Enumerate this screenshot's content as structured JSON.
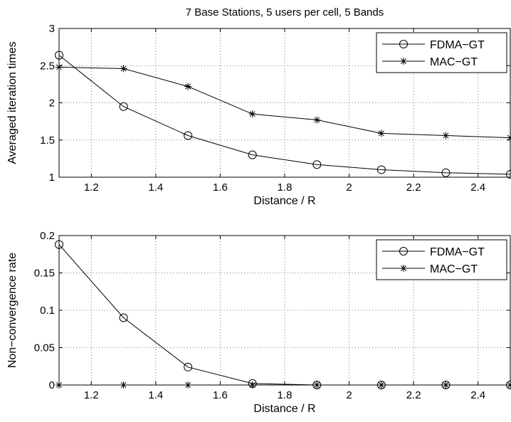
{
  "chart_data": [
    {
      "type": "line",
      "title": "7 Base Stations, 5 users per cell, 5 Bands",
      "xlabel": "Distance / R",
      "ylabel": "Averaged iteration times",
      "xlim": [
        1.1,
        2.5
      ],
      "ylim": [
        1,
        3
      ],
      "xticks": [
        "1.2",
        "1.4",
        "1.6",
        "1.8",
        "2",
        "2.2",
        "2.4"
      ],
      "yticks": [
        "1",
        "1.5",
        "2",
        "2.5",
        "3"
      ],
      "grid": true,
      "legend_position": "top-right",
      "x": [
        1.1,
        1.3,
        1.5,
        1.7,
        1.9,
        2.1,
        2.3,
        2.5
      ],
      "series": [
        {
          "name": "FDMA−GT",
          "marker": "circle",
          "values": [
            2.64,
            1.95,
            1.56,
            1.3,
            1.17,
            1.1,
            1.06,
            1.04
          ]
        },
        {
          "name": "MAC−GT",
          "marker": "star",
          "values": [
            2.48,
            2.46,
            2.22,
            1.85,
            1.77,
            1.59,
            1.56,
            1.53
          ]
        }
      ]
    },
    {
      "type": "line",
      "title": "",
      "xlabel": "Distance / R",
      "ylabel": "Non−convergence rate",
      "xlim": [
        1.1,
        2.5
      ],
      "ylim": [
        0,
        0.2
      ],
      "xticks": [
        "1.2",
        "1.4",
        "1.6",
        "1.8",
        "2",
        "2.2",
        "2.4"
      ],
      "yticks": [
        "0",
        "0.05",
        "0.1",
        "0.15",
        "0.2"
      ],
      "grid": true,
      "legend_position": "top-right",
      "x": [
        1.1,
        1.3,
        1.5,
        1.7,
        1.9,
        2.1,
        2.3,
        2.5
      ],
      "series": [
        {
          "name": "FDMA−GT",
          "marker": "circle",
          "values": [
            0.188,
            0.09,
            0.024,
            0.002,
            0,
            0,
            0,
            0
          ]
        },
        {
          "name": "MAC−GT",
          "marker": "star",
          "values": [
            0,
            0,
            0,
            0,
            0,
            0,
            0,
            0
          ]
        }
      ]
    }
  ]
}
